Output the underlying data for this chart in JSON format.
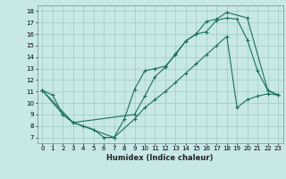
{
  "xlabel": "Humidex (Indice chaleur)",
  "bg_color": "#c8e8e8",
  "line_color": "#1a7060",
  "grid_color": "#a0c8c8",
  "xlim": [
    -0.5,
    23.5
  ],
  "ylim": [
    6.5,
    18.5
  ],
  "xticks": [
    0,
    1,
    2,
    3,
    4,
    5,
    6,
    7,
    8,
    9,
    10,
    11,
    12,
    13,
    14,
    15,
    16,
    17,
    18,
    19,
    20,
    21,
    22,
    23
  ],
  "yticks": [
    7,
    8,
    9,
    10,
    11,
    12,
    13,
    14,
    15,
    16,
    17,
    18
  ],
  "line1_x": [
    0,
    1,
    2,
    3,
    4,
    5,
    6,
    7,
    8,
    9,
    10,
    11,
    12,
    13,
    14,
    15,
    16,
    17,
    18,
    19,
    20,
    21,
    22,
    23
  ],
  "line1_y": [
    11.1,
    10.7,
    9.0,
    8.3,
    8.0,
    7.7,
    7.0,
    7.0,
    8.6,
    11.2,
    12.8,
    13.0,
    13.2,
    14.2,
    15.4,
    16.0,
    16.2,
    17.2,
    17.4,
    17.3,
    15.5,
    12.8,
    11.1,
    10.7
  ],
  "line2_x": [
    0,
    2,
    3,
    9,
    10,
    11,
    12,
    13,
    14,
    15,
    16,
    17,
    18,
    20,
    22,
    23
  ],
  "line2_y": [
    11.1,
    9.0,
    8.3,
    9.0,
    10.6,
    12.3,
    13.1,
    14.3,
    15.4,
    16.0,
    17.1,
    17.3,
    17.9,
    17.4,
    11.1,
    10.7
  ],
  "line3_x": [
    0,
    3,
    7,
    9,
    10,
    11,
    12,
    13,
    14,
    15,
    16,
    17,
    18,
    19,
    20,
    21,
    22,
    23
  ],
  "line3_y": [
    11.1,
    8.3,
    7.0,
    8.6,
    9.6,
    10.3,
    11.0,
    11.8,
    12.6,
    13.4,
    14.2,
    15.0,
    15.8,
    9.6,
    10.3,
    10.6,
    10.8,
    10.7
  ]
}
